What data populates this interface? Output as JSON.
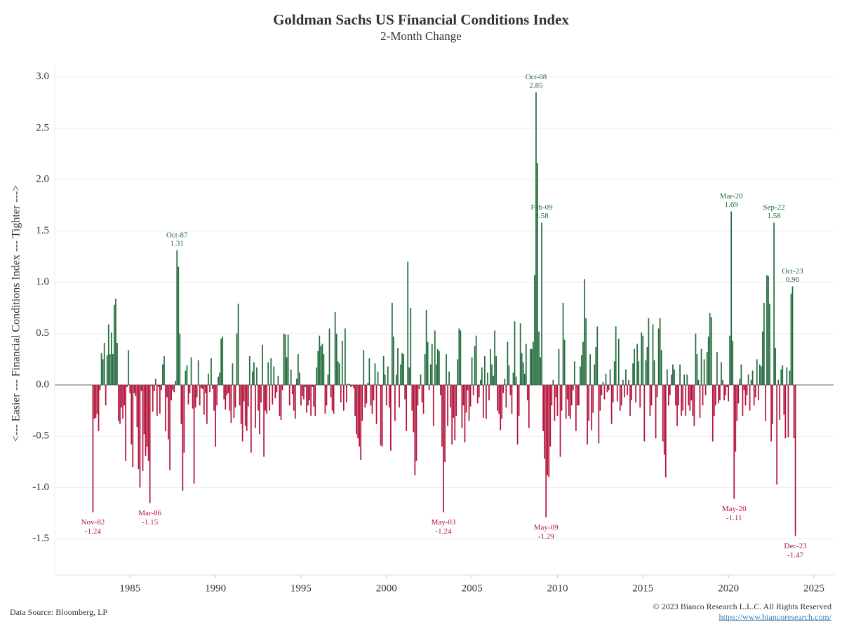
{
  "chart_data": {
    "type": "bar",
    "title": "Goldman Sachs US Financial Conditions Index",
    "subtitle": "2-Month Change",
    "y_label": "<--- Easier --- Financial Conditions Index --- Tighter --->",
    "source": "Data Source: Bloomberg, LP",
    "copyright": "© 2023 Bianco Research L.L.C. All Rights Reserved",
    "url": "https://www.biancoresearch.com/",
    "positive_color": "#226b3d",
    "negative_color": "#b3123a",
    "grid": true,
    "xlim": [
      1980.6,
      2026.15
    ],
    "xticks": [
      1985,
      1990,
      1995,
      2000,
      2005,
      2010,
      2015,
      2020,
      2025
    ],
    "ylim": [
      -1.85,
      3.1
    ],
    "yticks": [
      -1.5,
      {
        "value": -1,
        "label": "-1.0"
      },
      -0.5,
      {
        "value": 0,
        "label": "0.0"
      },
      0.5,
      {
        "value": 1,
        "label": "1.0"
      },
      1.5,
      {
        "value": 2,
        "label": "2.0"
      },
      2.5,
      {
        "value": 3,
        "label": "3.0"
      }
    ],
    "x": [
      "1982-11",
      "1982-12",
      "1983-01",
      "1983-02",
      "1983-03",
      "1983-04",
      "1983-05",
      "1983-06",
      "1983-07",
      "1983-08",
      "1983-09",
      "1983-10",
      "1983-11",
      "1983-12",
      "1984-01",
      "1984-02",
      "1984-03",
      "1984-04",
      "1984-05",
      "1984-06",
      "1984-07",
      "1984-08",
      "1984-09",
      "1984-10",
      "1984-11",
      "1984-12",
      "1985-01",
      "1985-02",
      "1985-03",
      "1985-04",
      "1985-05",
      "1985-06",
      "1985-07",
      "1985-08",
      "1985-09",
      "1985-10",
      "1985-11",
      "1985-12",
      "1986-01",
      "1986-02",
      "1986-03",
      "1986-04",
      "1986-05",
      "1986-06",
      "1986-07",
      "1986-08",
      "1986-09",
      "1986-10",
      "1986-11",
      "1986-12",
      "1987-01",
      "1987-02",
      "1987-03",
      "1987-04",
      "1987-05",
      "1987-06",
      "1987-07",
      "1987-08",
      "1987-09",
      "1987-10",
      "1987-11",
      "1987-12",
      "1988-01",
      "1988-02",
      "1988-03",
      "1988-04",
      "1988-05",
      "1988-06",
      "1988-07",
      "1988-08",
      "1988-09",
      "1988-10",
      "1988-11",
      "1988-12",
      "1989-01",
      "1989-02",
      "1989-03",
      "1989-04",
      "1989-05",
      "1989-06",
      "1989-07",
      "1989-08",
      "1989-09",
      "1989-10",
      "1989-11",
      "1989-12",
      "1990-01",
      "1990-02",
      "1990-03",
      "1990-04",
      "1990-05",
      "1990-06",
      "1990-07",
      "1990-08",
      "1990-09",
      "1990-10",
      "1990-11",
      "1990-12",
      "1991-01",
      "1991-02",
      "1991-03",
      "1991-04",
      "1991-05",
      "1991-06",
      "1991-07",
      "1991-08",
      "1991-09",
      "1991-10",
      "1991-11",
      "1991-12",
      "1992-01",
      "1992-02",
      "1992-03",
      "1992-04",
      "1992-05",
      "1992-06",
      "1992-07",
      "1992-08",
      "1992-09",
      "1992-10",
      "1992-11",
      "1992-12",
      "1993-01",
      "1993-02",
      "1993-03",
      "1993-04",
      "1993-05",
      "1993-06",
      "1993-07",
      "1993-08",
      "1993-09",
      "1993-10",
      "1993-11",
      "1993-12",
      "1994-01",
      "1994-02",
      "1994-03",
      "1994-04",
      "1994-05",
      "1994-06",
      "1994-07",
      "1994-08",
      "1994-09",
      "1994-10",
      "1994-11",
      "1994-12",
      "1995-01",
      "1995-02",
      "1995-03",
      "1995-04",
      "1995-05",
      "1995-06",
      "1995-07",
      "1995-08",
      "1995-09",
      "1995-10",
      "1995-11",
      "1995-12",
      "1996-01",
      "1996-02",
      "1996-03",
      "1996-04",
      "1996-05",
      "1996-06",
      "1996-07",
      "1996-08",
      "1996-09",
      "1996-10",
      "1996-11",
      "1996-12",
      "1997-01",
      "1997-02",
      "1997-03",
      "1997-04",
      "1997-05",
      "1997-06",
      "1997-07",
      "1997-08",
      "1997-09",
      "1997-10",
      "1997-11",
      "1997-12",
      "1998-01",
      "1998-02",
      "1998-03",
      "1998-04",
      "1998-05",
      "1998-06",
      "1998-07",
      "1998-08",
      "1998-09",
      "1998-10",
      "1998-11",
      "1998-12",
      "1999-01",
      "1999-02",
      "1999-03",
      "1999-04",
      "1999-05",
      "1999-06",
      "1999-07",
      "1999-08",
      "1999-09",
      "1999-10",
      "1999-11",
      "1999-12",
      "2000-01",
      "2000-02",
      "2000-03",
      "2000-04",
      "2000-05",
      "2000-06",
      "2000-07",
      "2000-08",
      "2000-09",
      "2000-10",
      "2000-11",
      "2000-12",
      "2001-01",
      "2001-02",
      "2001-03",
      "2001-04",
      "2001-05",
      "2001-06",
      "2001-07",
      "2001-08",
      "2001-09",
      "2001-10",
      "2001-11",
      "2001-12",
      "2002-01",
      "2002-02",
      "2002-03",
      "2002-04",
      "2002-05",
      "2002-06",
      "2002-07",
      "2002-08",
      "2002-09",
      "2002-10",
      "2002-11",
      "2002-12",
      "2003-01",
      "2003-02",
      "2003-03",
      "2003-04",
      "2003-05",
      "2003-06",
      "2003-07",
      "2003-08",
      "2003-09",
      "2003-10",
      "2003-11",
      "2003-12",
      "2004-01",
      "2004-02",
      "2004-03",
      "2004-04",
      "2004-05",
      "2004-06",
      "2004-07",
      "2004-08",
      "2004-09",
      "2004-10",
      "2004-11",
      "2004-12",
      "2005-01",
      "2005-02",
      "2005-03",
      "2005-04",
      "2005-05",
      "2005-06",
      "2005-07",
      "2005-08",
      "2005-09",
      "2005-10",
      "2005-11",
      "2005-12",
      "2006-01",
      "2006-02",
      "2006-03",
      "2006-04",
      "2006-05",
      "2006-06",
      "2006-07",
      "2006-08",
      "2006-09",
      "2006-10",
      "2006-11",
      "2006-12",
      "2007-01",
      "2007-02",
      "2007-03",
      "2007-04",
      "2007-05",
      "2007-06",
      "2007-07",
      "2007-08",
      "2007-09",
      "2007-10",
      "2007-11",
      "2007-12",
      "2008-01",
      "2008-02",
      "2008-03",
      "2008-04",
      "2008-05",
      "2008-06",
      "2008-07",
      "2008-08",
      "2008-09",
      "2008-10",
      "2008-11",
      "2008-12",
      "2009-01",
      "2009-02",
      "2009-03",
      "2009-04",
      "2009-05",
      "2009-06",
      "2009-07",
      "2009-08",
      "2009-09",
      "2009-10",
      "2009-11",
      "2009-12",
      "2010-01",
      "2010-02",
      "2010-03",
      "2010-04",
      "2010-05",
      "2010-06",
      "2010-07",
      "2010-08",
      "2010-09",
      "2010-10",
      "2010-11",
      "2010-12",
      "2011-01",
      "2011-02",
      "2011-03",
      "2011-04",
      "2011-05",
      "2011-06",
      "2011-07",
      "2011-08",
      "2011-09",
      "2011-10",
      "2011-11",
      "2011-12",
      "2012-01",
      "2012-02",
      "2012-03",
      "2012-04",
      "2012-05",
      "2012-06",
      "2012-07",
      "2012-08",
      "2012-09",
      "2012-10",
      "2012-11",
      "2012-12",
      "2013-01",
      "2013-02",
      "2013-03",
      "2013-04",
      "2013-05",
      "2013-06",
      "2013-07",
      "2013-08",
      "2013-09",
      "2013-10",
      "2013-11",
      "2013-12",
      "2014-01",
      "2014-02",
      "2014-03",
      "2014-04",
      "2014-05",
      "2014-06",
      "2014-07",
      "2014-08",
      "2014-09",
      "2014-10",
      "2014-11",
      "2014-12",
      "2015-01",
      "2015-02",
      "2015-03",
      "2015-04",
      "2015-05",
      "2015-06",
      "2015-07",
      "2015-08",
      "2015-09",
      "2015-10",
      "2015-11",
      "2015-12",
      "2016-01",
      "2016-02",
      "2016-03",
      "2016-04",
      "2016-05",
      "2016-06",
      "2016-07",
      "2016-08",
      "2016-09",
      "2016-10",
      "2016-11",
      "2016-12",
      "2017-01",
      "2017-02",
      "2017-03",
      "2017-04",
      "2017-05",
      "2017-06",
      "2017-07",
      "2017-08",
      "2017-09",
      "2017-10",
      "2017-11",
      "2017-12",
      "2018-01",
      "2018-02",
      "2018-03",
      "2018-04",
      "2018-05",
      "2018-06",
      "2018-07",
      "2018-08",
      "2018-09",
      "2018-10",
      "2018-11",
      "2018-12",
      "2019-01",
      "2019-02",
      "2019-03",
      "2019-04",
      "2019-05",
      "2019-06",
      "2019-07",
      "2019-08",
      "2019-09",
      "2019-10",
      "2019-11",
      "2019-12",
      "2020-01",
      "2020-02",
      "2020-03",
      "2020-04",
      "2020-05",
      "2020-06",
      "2020-07",
      "2020-08",
      "2020-09",
      "2020-10",
      "2020-11",
      "2020-12",
      "2021-01",
      "2021-02",
      "2021-03",
      "2021-04",
      "2021-05",
      "2021-06",
      "2021-07",
      "2021-08",
      "2021-09",
      "2021-10",
      "2021-11",
      "2021-12",
      "2022-01",
      "2022-02",
      "2022-03",
      "2022-04",
      "2022-05",
      "2022-06",
      "2022-07",
      "2022-08",
      "2022-09",
      "2022-10",
      "2022-11",
      "2022-12",
      "2023-01",
      "2023-02",
      "2023-03",
      "2023-04",
      "2023-05",
      "2023-06",
      "2023-07",
      "2023-08",
      "2023-09",
      "2023-10",
      "2023-11",
      "2023-12"
    ],
    "values": [
      -1.24,
      -0.33,
      -0.32,
      -0.28,
      -0.45,
      -0.05,
      0.31,
      0.25,
      0.41,
      -0.2,
      0.29,
      0.59,
      0.3,
      0.51,
      0.3,
      0.78,
      0.84,
      0.41,
      -0.35,
      -0.38,
      -0.22,
      -0.33,
      -0.2,
      -0.74,
      -0.02,
      0.34,
      -0.08,
      -0.58,
      -0.8,
      -0.08,
      -0.11,
      -0.41,
      -0.82,
      -1.0,
      -0.06,
      -0.84,
      -0.48,
      -0.69,
      -0.6,
      -0.74,
      -1.15,
      -0.01,
      -0.26,
      -0.06,
      0.06,
      -0.3,
      -0.02,
      -0.28,
      -0.05,
      0.2,
      0.28,
      -0.45,
      -0.12,
      -0.53,
      -0.83,
      -0.15,
      -0.05,
      -0.07,
      0.04,
      1.31,
      1.15,
      0.5,
      -0.38,
      -1.03,
      -0.66,
      0.14,
      0.19,
      -0.19,
      -0.08,
      0.27,
      -0.23,
      -0.96,
      -0.22,
      -0.12,
      0.24,
      -0.2,
      -0.03,
      -0.04,
      -0.29,
      -0.08,
      -0.38,
      0.11,
      -0.07,
      0.26,
      -0.04,
      -0.25,
      -0.6,
      -0.2,
      0.08,
      0.12,
      0.45,
      0.47,
      -0.14,
      -0.24,
      -0.1,
      -0.08,
      -0.25,
      -0.37,
      0.21,
      -0.32,
      -0.22,
      0.5,
      0.79,
      -0.2,
      -0.38,
      -0.55,
      -0.16,
      -0.4,
      -0.45,
      -0.21,
      0.28,
      -0.66,
      0.13,
      0.22,
      -0.42,
      0.17,
      -0.25,
      -0.48,
      -0.17,
      0.39,
      -0.7,
      -0.25,
      -0.28,
      0.22,
      -0.25,
      0.26,
      -0.19,
      0.18,
      -0.13,
      -0.07,
      0.09,
      -0.3,
      -0.34,
      -0.05,
      0.5,
      0.49,
      0.27,
      0.49,
      -0.2,
      0.15,
      -0.09,
      -0.25,
      -0.33,
      0.06,
      0.3,
      0.12,
      -0.2,
      -0.11,
      -0.14,
      -0.02,
      -0.27,
      -0.2,
      -0.15,
      -0.3,
      -0.02,
      -0.21,
      -0.3,
      0.17,
      0.33,
      0.48,
      0.38,
      0.4,
      0.3,
      -0.28,
      -0.2,
      0.1,
      0.55,
      -0.12,
      -0.25,
      -0.28,
      0.71,
      0.5,
      0.23,
      0.21,
      -0.17,
      0.43,
      -0.25,
      0.55,
      -0.17,
      0.01,
      0.01,
      -0.02,
      -0.01,
      -0.03,
      -0.3,
      -0.48,
      -0.52,
      -0.6,
      -0.73,
      -0.35,
      0.34,
      -0.22,
      -0.18,
      0.02,
      0.26,
      -0.2,
      -0.28,
      -0.15,
      0.21,
      -0.38,
      0.13,
      -0.01,
      -0.59,
      -0.6,
      0.28,
      0.1,
      -0.2,
      0.18,
      -0.22,
      -0.64,
      0.8,
      0.47,
      -0.35,
      0.1,
      0.36,
      -0.22,
      0.2,
      0.31,
      0.3,
      -0.14,
      -0.45,
      1.2,
      0.17,
      0.75,
      -0.25,
      -0.46,
      -0.88,
      -0.74,
      -0.2,
      -0.04,
      0.1,
      -0.17,
      -0.28,
      0.3,
      0.73,
      0.42,
      -0.05,
      0.2,
      0.4,
      -0.4,
      0.53,
      0.2,
      0.35,
      0.33,
      -0.1,
      -0.6,
      -1.24,
      -0.75,
      0.3,
      -0.4,
      0.13,
      -0.22,
      -0.58,
      -0.32,
      -0.54,
      -0.3,
      0.25,
      0.55,
      0.53,
      -0.42,
      -0.2,
      -0.56,
      -0.27,
      -0.05,
      -0.35,
      -0.21,
      0.27,
      -0.1,
      0.38,
      0.48,
      -0.18,
      -0.12,
      0.05,
      0.17,
      -0.32,
      0.28,
      -0.33,
      0.12,
      -0.15,
      0.35,
      0.2,
      0.09,
      0.53,
      0.28,
      -0.25,
      -0.28,
      -0.44,
      -0.33,
      -0.08,
      0.06,
      -0.22,
      0.42,
      0.19,
      -0.1,
      -0.28,
      0.12,
      0.62,
      0.08,
      -0.58,
      -0.3,
      0.6,
      0.31,
      0.22,
      0.11,
      0.4,
      -0.15,
      -0.42,
      0.35,
      0.35,
      0.42,
      1.07,
      2.85,
      2.16,
      0.52,
      0.27,
      1.58,
      -0.45,
      -0.72,
      -1.29,
      -0.88,
      -0.9,
      -0.6,
      -0.2,
      0.05,
      -0.35,
      -0.12,
      -0.3,
      0.35,
      -0.7,
      -0.25,
      0.8,
      0.44,
      -0.33,
      -0.14,
      -0.3,
      -0.33,
      -0.2,
      -0.05,
      0.23,
      -0.45,
      -0.2,
      -0.2,
      0.18,
      0.29,
      0.42,
      1.03,
      0.65,
      -0.58,
      -0.35,
      0.3,
      -0.44,
      -0.27,
      0.2,
      0.37,
      0.57,
      -0.57,
      -0.25,
      -0.1,
      0.03,
      -0.14,
      0.11,
      -0.07,
      -0.05,
      0.15,
      -0.38,
      -0.17,
      0.23,
      0.57,
      -0.16,
      0.45,
      -0.25,
      -0.2,
      0.05,
      -0.12,
      0.15,
      -0.1,
      0.05,
      -0.3,
      -0.15,
      0.21,
      0.35,
      -0.17,
      0.4,
      0.23,
      -0.22,
      0.51,
      0.48,
      -0.55,
      0.24,
      0.37,
      0.65,
      -0.3,
      -0.2,
      0.59,
      0.24,
      -0.52,
      -0.12,
      0.55,
      0.65,
      0.34,
      -0.55,
      -0.68,
      -0.9,
      0.15,
      -0.2,
      -0.1,
      0.1,
      0.2,
      0.15,
      -0.2,
      -0.4,
      -0.2,
      0.2,
      -0.3,
      -0.25,
      0.1,
      -0.3,
      0.1,
      -0.2,
      -0.25,
      -0.15,
      -0.3,
      -0.4,
      0.5,
      0.3,
      0.05,
      -0.32,
      0.35,
      -0.2,
      0.25,
      -0.1,
      0.32,
      0.47,
      0.7,
      0.66,
      -0.55,
      -0.3,
      -0.2,
      0.32,
      -0.18,
      -0.15,
      0.22,
      0.05,
      -0.15,
      -0.1,
      -0.02,
      -0.16,
      0.48,
      1.69,
      0.43,
      -1.11,
      -0.65,
      -0.35,
      -0.18,
      0.06,
      0.2,
      -0.3,
      -0.05,
      -0.2,
      -0.1,
      0.1,
      -0.25,
      0.05,
      0.14,
      -0.2,
      -0.12,
      0.25,
      -0.15,
      0.2,
      0.18,
      0.52,
      0.8,
      -0.35,
      1.07,
      1.06,
      0.79,
      -0.55,
      -0.38,
      1.58,
      0.36,
      -0.97,
      0.05,
      -0.34,
      0.15,
      0.19,
      -0.29,
      -0.52,
      0.17,
      -0.51,
      0.14,
      0.89,
      0.96,
      -0.52,
      -1.47
    ],
    "annotations": [
      {
        "x": "1982-11",
        "label": "Nov-82",
        "value": -1.24
      },
      {
        "x": "1986-03",
        "label": "Mar-86",
        "value": -1.15
      },
      {
        "x": "1987-10",
        "label": "Oct-87",
        "value": 1.31
      },
      {
        "x": "2003-05",
        "label": "May-03",
        "value": -1.24
      },
      {
        "x": "2008-10",
        "label": "Oct-08",
        "value": 2.85
      },
      {
        "x": "2009-02",
        "label": "Feb-09",
        "value": 1.58
      },
      {
        "x": "2009-05",
        "label": "May-09",
        "value": -1.29
      },
      {
        "x": "2020-03",
        "label": "Mar-20",
        "value": 1.69
      },
      {
        "x": "2020-05",
        "label": "May-20",
        "value": -1.11
      },
      {
        "x": "2022-09",
        "label": "Sep-22",
        "value": 1.58
      },
      {
        "x": "2023-10",
        "label": "Oct-23",
        "value": 0.96
      },
      {
        "x": "2023-12",
        "label": "Dec-23",
        "value": -1.47
      }
    ]
  }
}
